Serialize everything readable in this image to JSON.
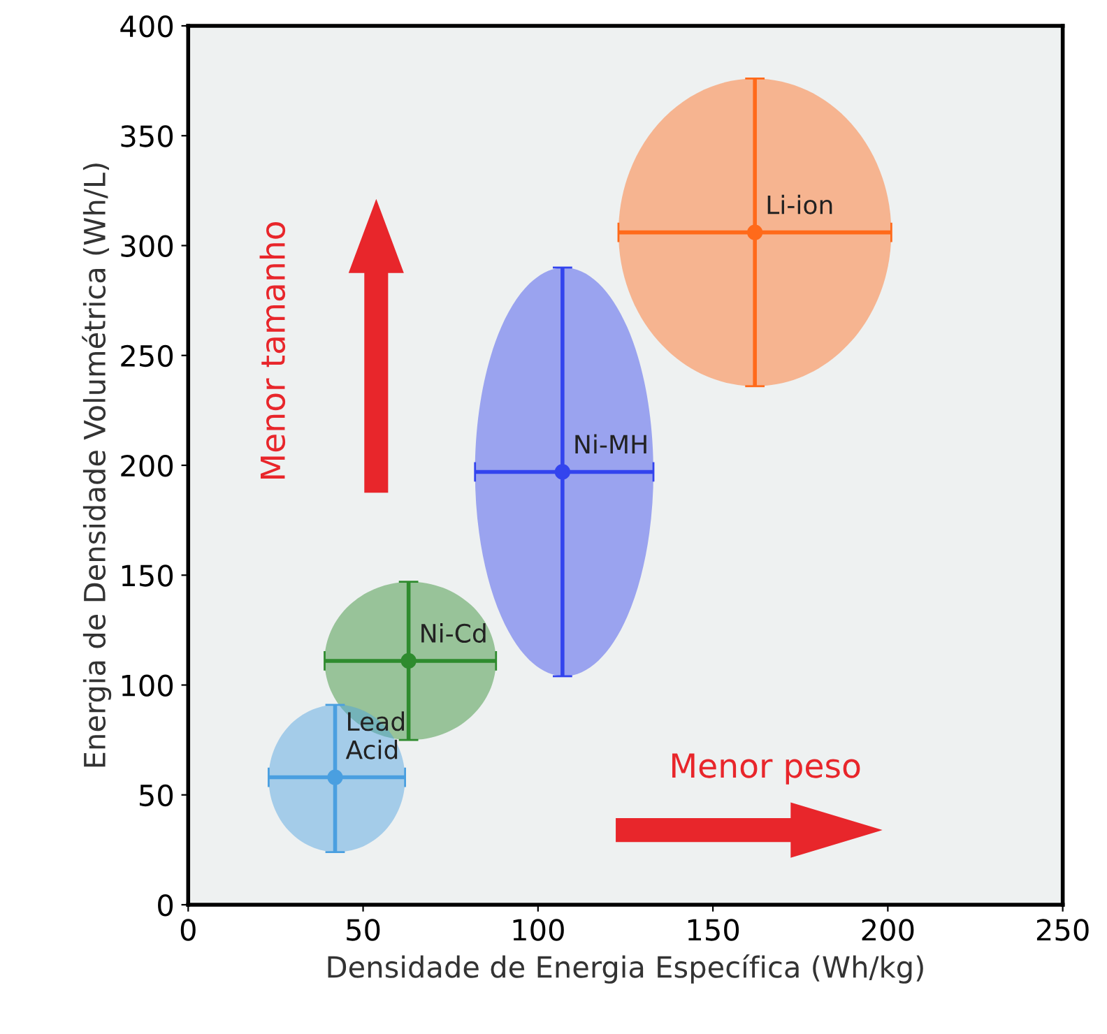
{
  "chart_data": {
    "type": "scatter",
    "xlabel": "Densidade de Energia Específica (Wh/kg)",
    "ylabel": "Energia de Densidade Volumétrica (Wh/L)",
    "xlim": [
      0,
      250
    ],
    "ylim": [
      0,
      400
    ],
    "xticks": [
      0,
      50,
      100,
      150,
      200,
      250
    ],
    "yticks": [
      0,
      50,
      100,
      150,
      200,
      250,
      300,
      350,
      400
    ],
    "grid": false,
    "series": [
      {
        "name": "Lead\nAcid",
        "color": "#4a9fe0",
        "x": [
          42
        ],
        "values": [
          58
        ],
        "xerrors": [
          [
            23,
            62
          ]
        ],
        "errors": [
          [
            24,
            91
          ]
        ]
      },
      {
        "name": "Ni-Cd",
        "color": "#2e8b2e",
        "x": [
          63
        ],
        "values": [
          111
        ],
        "xerrors": [
          [
            39,
            88
          ]
        ],
        "errors": [
          [
            75,
            147
          ]
        ]
      },
      {
        "name": "Ni-MH",
        "color": "#3344ee",
        "x": [
          107
        ],
        "values": [
          197
        ],
        "xerrors": [
          [
            82,
            133
          ]
        ],
        "errors": [
          [
            104,
            290
          ]
        ]
      },
      {
        "name": "Li-ion",
        "color": "#ff6a1a",
        "x": [
          162
        ],
        "values": [
          306
        ],
        "xerrors": [
          [
            123,
            201
          ]
        ],
        "errors": [
          [
            236,
            376
          ]
        ]
      }
    ],
    "annotations": [
      "Menor tamanho",
      "Menor peso"
    ]
  }
}
